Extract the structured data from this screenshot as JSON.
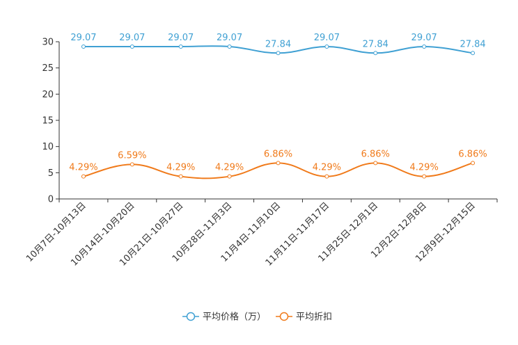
{
  "chart_data": {
    "type": "line",
    "categories": [
      "10月7日-10月13日",
      "10月14日-10月20日",
      "10月21日-10月27日",
      "10月28日-11月3日",
      "11月4日-11月10日",
      "11月11日-11月17日",
      "11月25日-12月1日",
      "12月2日-12月8日",
      "12月9日-12月15日"
    ],
    "series": [
      {
        "name": "平均价格（万）",
        "color": "#3fa0d3",
        "values": [
          29.07,
          29.07,
          29.07,
          29.07,
          27.84,
          29.07,
          27.84,
          29.07,
          27.84
        ],
        "labels": [
          "29.07",
          "29.07",
          "29.07",
          "29.07",
          "27.84",
          "29.07",
          "27.84",
          "29.07",
          "27.84"
        ]
      },
      {
        "name": "平均折扣",
        "color": "#f07a1a",
        "values": [
          4.29,
          6.59,
          4.29,
          4.29,
          6.86,
          4.29,
          6.86,
          4.29,
          6.86
        ],
        "labels": [
          "4.29%",
          "6.59%",
          "4.29%",
          "4.29%",
          "6.86%",
          "4.29%",
          "6.86%",
          "4.29%",
          "6.86%"
        ]
      }
    ],
    "yticks": [
      "0",
      "5",
      "10",
      "15",
      "20",
      "25",
      "30"
    ],
    "ylim": [
      0,
      30
    ],
    "grid": false,
    "legend_position": "bottom-center",
    "title": "",
    "xlabel": "",
    "ylabel": ""
  }
}
